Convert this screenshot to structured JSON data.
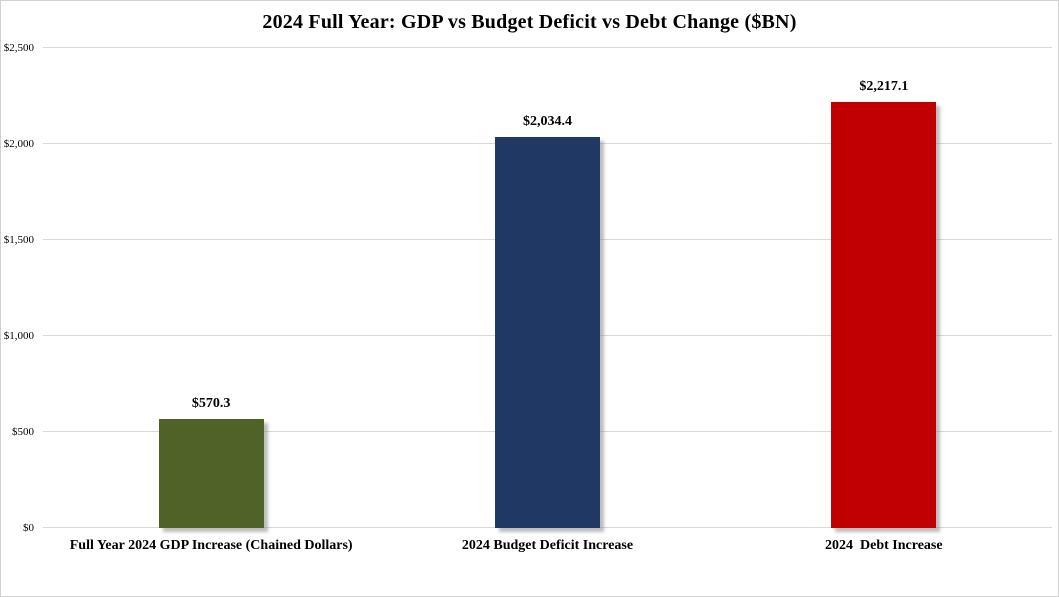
{
  "window": {
    "background_color": "#FFFFFF",
    "frame_border_color": "#D2D2D2"
  },
  "chart_data": {
    "type": "bar",
    "title": "2024 Full Year: GDP vs Budget Deficit vs Debt Change ($BN)",
    "categories": [
      "Full Year 2024 GDP Increase (Chained Dollars)",
      "2024 Budget Deficit Increase",
      "2024  Debt Increase"
    ],
    "values": [
      570.3,
      2034.4,
      2217.1
    ],
    "value_labels": [
      "$570.3",
      "$2,034.4",
      "$2,217.1"
    ],
    "bar_colors": [
      "#4F6228",
      "#1F3864",
      "#C00000"
    ],
    "xlabel": "",
    "ylabel": "",
    "ylim": [
      0,
      2500
    ],
    "y_ticks": [
      {
        "value": 0,
        "label": "$0"
      },
      {
        "value": 500,
        "label": "$500"
      },
      {
        "value": 1000,
        "label": "$1,000"
      },
      {
        "value": 1500,
        "label": "$1,500"
      },
      {
        "value": 2000,
        "label": "$2,000"
      },
      {
        "value": 2500,
        "label": "$2,500"
      }
    ],
    "grid": "horizontal",
    "gridline_color": "#D9D9D9",
    "legend": "none",
    "value_label_color": "#000000"
  }
}
